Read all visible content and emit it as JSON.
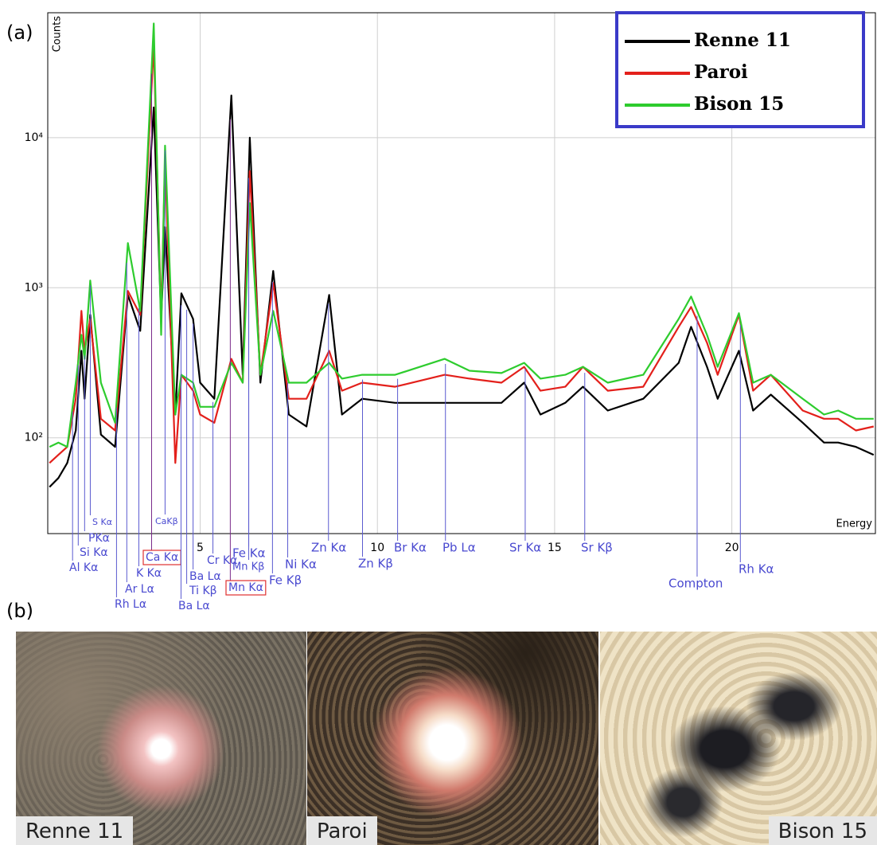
{
  "panel_labels": [
    "(a)",
    "(b)"
  ],
  "chart_data": {
    "type": "line",
    "x_label": "Energy",
    "y_label": "Counts",
    "log_y": true,
    "grid": true,
    "legend": "upper right",
    "x": [
      0.75,
      1.0,
      1.25,
      1.49,
      1.65,
      1.74,
      1.9,
      2.2,
      2.6,
      2.96,
      3.31,
      3.69,
      3.9,
      4.01,
      4.3,
      4.47,
      4.8,
      5.0,
      5.4,
      5.88,
      6.2,
      6.4,
      6.7,
      7.06,
      7.5,
      8.0,
      8.64,
      9.0,
      9.57,
      10.5,
      11.9,
      12.6,
      13.5,
      14.14,
      14.6,
      15.3,
      15.8,
      16.5,
      17.5,
      18.5,
      18.85,
      19.3,
      19.6,
      20.2,
      20.6,
      21.1,
      22.0,
      22.6,
      23.0,
      23.5,
      24.0
    ],
    "series": [
      {
        "name": "Renne 11",
        "color": "#000000",
        "values": [
          47,
          54,
          68,
          112,
          380,
          182,
          659,
          105,
          87,
          896,
          516,
          15920,
          620,
          2535,
          143,
          918,
          620,
          233,
          182,
          19100,
          263,
          10000,
          233,
          1294,
          143,
          119,
          896,
          143,
          182,
          171,
          171,
          171,
          171,
          233,
          143,
          171,
          219,
          152,
          182,
          316,
          549,
          297,
          182,
          380,
          152,
          194,
          126,
          93,
          93,
          87,
          77
        ]
      },
      {
        "name": "Paroi",
        "color": "#e3201b",
        "values": [
          68,
          77,
          87,
          182,
          701,
          380,
          620,
          134,
          112,
          952,
          659,
          42450,
          620,
          7180,
          68,
          263,
          206,
          143,
          126,
          336,
          233,
          5980,
          263,
          1076,
          182,
          182,
          380,
          206,
          233,
          219,
          263,
          248,
          233,
          297,
          206,
          219,
          297,
          206,
          219,
          549,
          745,
          430,
          263,
          659,
          206,
          263,
          152,
          134,
          134,
          112,
          119
        ]
      },
      {
        "name": "Bison 15",
        "color": "#2ecc2e",
        "values": [
          87,
          93,
          87,
          233,
          485,
          336,
          1117,
          233,
          126,
          1986,
          701,
          57650,
          485,
          8850,
          143,
          263,
          233,
          161,
          161,
          316,
          233,
          3660,
          263,
          701,
          233,
          233,
          316,
          248,
          263,
          263,
          336,
          280,
          270,
          316,
          248,
          263,
          297,
          233,
          263,
          620,
          874,
          485,
          297,
          676,
          233,
          263,
          182,
          143,
          152,
          134,
          134
        ]
      }
    ],
    "xlim": [
      0.7,
      24.05
    ],
    "xticks": [
      5,
      10,
      15,
      20
    ],
    "ylim": [
      23,
      68000
    ],
    "yticks": [
      {
        "value": 100,
        "label": "10²"
      },
      {
        "value": 1000,
        "label": "10³"
      },
      {
        "value": 10000,
        "label": "10⁴"
      }
    ],
    "annotations": [
      {
        "text": "Al Kα",
        "x": 1.4
      },
      {
        "text": "Si Kα",
        "x": 1.56
      },
      {
        "text": "PKα",
        "x": 1.74
      },
      {
        "text": "S Kα",
        "x": 1.9
      },
      {
        "text": "Rh Lα",
        "x": 2.64
      },
      {
        "text": "Ar Lα",
        "x": 2.93
      },
      {
        "text": "K Kα",
        "x": 3.27
      },
      {
        "text": "Ca Kα",
        "x": 3.63,
        "highlight": true
      },
      {
        "text": "CaKβ",
        "x": 4.01
      },
      {
        "text": "Ba Lα",
        "x": 4.46
      },
      {
        "text": "Ti Kβ",
        "x": 4.62
      },
      {
        "text": "Ba Lα",
        "x": 4.8
      },
      {
        "text": "Cr Kα",
        "x": 5.36
      },
      {
        "text": "Mn Kα",
        "x": 5.85,
        "highlight": true
      },
      {
        "text": "Mn Kβ",
        "x": 6.37
      },
      {
        "text": "Fe Kα",
        "x": 6.37
      },
      {
        "text": "Fe Kβ",
        "x": 7.04
      },
      {
        "text": "Ni Kα",
        "x": 7.47
      },
      {
        "text": "Zn Kα",
        "x": 8.62
      },
      {
        "text": "Zn Kβ",
        "x": 9.58
      },
      {
        "text": "Br Kα",
        "x": 10.57
      },
      {
        "text": "Pb Lα",
        "x": 11.92
      },
      {
        "text": "Sr Kα",
        "x": 14.17
      },
      {
        "text": "Sr Kβ",
        "x": 15.85
      },
      {
        "text": "Compton",
        "x": 19.02
      },
      {
        "text": "Rh Kα",
        "x": 20.24
      }
    ]
  },
  "photos": [
    {
      "caption": "Renne 11"
    },
    {
      "caption": "Paroi"
    },
    {
      "caption": "Bison 15"
    }
  ]
}
